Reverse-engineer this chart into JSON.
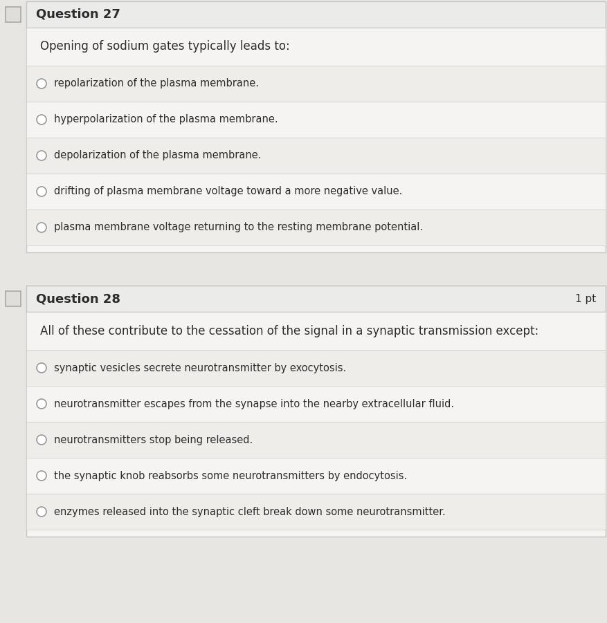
{
  "bg_color": "#e8e6e3",
  "card_bg": "#f5f4f2",
  "header_bg": "#ebebea",
  "row_odd": "#eeede9",
  "row_even": "#f5f4f2",
  "border_color": "#c8c6c3",
  "line_color": "#cccccc",
  "text_color": "#2c2c2c",
  "radio_color": "#999999",
  "radio_fill": "#ffffff",
  "icon_fill": "#e0dedb",
  "icon_edge": "#aaa8a5",
  "q27_header": "Question 27",
  "q27_question": "Opening of sodium gates typically leads to:",
  "q27_options": [
    "repolarization of the plasma membrane.",
    "hyperpolarization of the plasma membrane.",
    "depolarization of the plasma membrane.",
    "drifting of plasma membrane voltage toward a more negative value.",
    "plasma membrane voltage returning to the resting membrane potential."
  ],
  "q28_header": "Question 28",
  "q28_points": "1 pt",
  "q28_question": "All of these contribute to the cessation of the signal in a synaptic transmission except:",
  "q28_options": [
    "synaptic vesicles secrete neurotransmitter by exocytosis.",
    "neurotransmitter escapes from the synapse into the nearby extracellular fluid.",
    "neurotransmitters stop being released.",
    "the synaptic knob reabsorbs some neurotransmitters by endocytosis.",
    "enzymes released into the synaptic cleft break down some neurotransmitter."
  ],
  "fig_w": 8.78,
  "fig_h": 9.01,
  "dpi": 100
}
